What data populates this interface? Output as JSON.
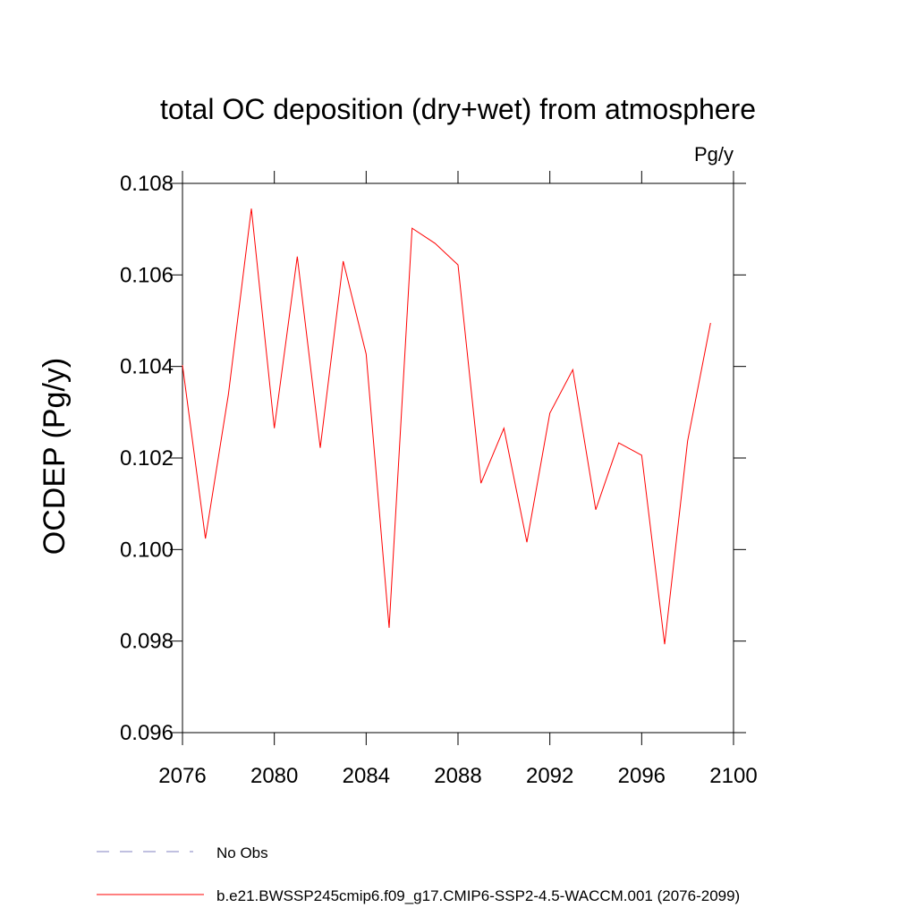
{
  "chart_data": {
    "type": "line",
    "title": "total OC deposition (dry+wet) from atmosphere",
    "units": "Pg/y",
    "y_label": "OCDEP  (Pg/y)",
    "x": [
      2076,
      2077,
      2078,
      2079,
      2080,
      2081,
      2082,
      2083,
      2084,
      2085,
      2086,
      2087,
      2088,
      2089,
      2090,
      2091,
      2092,
      2093,
      2094,
      2095,
      2096,
      2097,
      2098,
      2099
    ],
    "series": [
      {
        "name": "b.e21.BWSSP245cmip6.f09_g17.CMIP6-SSP2-4.5-WACCM.001 (2076-2099)",
        "color": "#ff0000",
        "values": [
          0.10403,
          0.10024,
          0.10339,
          0.10745,
          0.10265,
          0.1064,
          0.10222,
          0.1063,
          0.10427,
          0.09829,
          0.10702,
          0.10669,
          0.10622,
          0.10145,
          0.10265,
          0.10016,
          0.10298,
          0.10393,
          0.10087,
          0.10233,
          0.10206,
          0.09793,
          0.10237,
          0.10495
        ]
      }
    ],
    "extra_legend": [
      {
        "name": "No Obs",
        "color": "#8080c0",
        "line_style": "dashed"
      }
    ],
    "xlim": [
      2076,
      2100
    ],
    "xticks": [
      2076,
      2080,
      2084,
      2088,
      2092,
      2096,
      2100
    ],
    "ylim": [
      0.096,
      0.108
    ],
    "yticks": [
      0.096,
      0.098,
      {
        "value": 0.1,
        "label": "0.100"
      },
      0.102,
      0.104,
      0.106,
      0.108
    ],
    "grid": false
  }
}
